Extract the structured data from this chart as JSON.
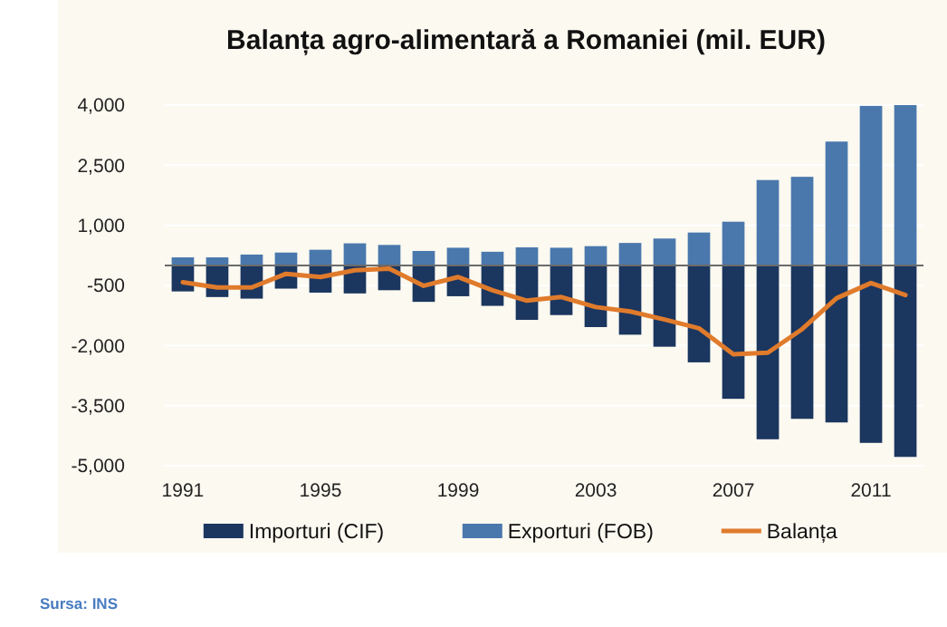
{
  "chart_data": {
    "type": "bar",
    "stacked": true,
    "title": "Balanța agro-alimentară a Romaniei (mil. EUR)",
    "categories": [
      "1991",
      null,
      null,
      null,
      "1995",
      null,
      null,
      null,
      "1999",
      null,
      null,
      null,
      "2003",
      null,
      null,
      null,
      "2007",
      null,
      null,
      null,
      "2011",
      null
    ],
    "series": [
      {
        "name": "Importuri (CIF)",
        "color": "#1b365f",
        "values": [
          -650,
          -790,
          -830,
          -580,
          -680,
          -700,
          -620,
          -910,
          -770,
          -1010,
          -1360,
          -1240,
          -1540,
          -1730,
          -2030,
          -2420,
          -3330,
          -4340,
          -3830,
          -3920,
          -4430,
          -4780
        ]
      },
      {
        "name": "Exporturi (FOB)",
        "color": "#4a78ad",
        "values": [
          200,
          200,
          270,
          320,
          390,
          550,
          510,
          360,
          440,
          340,
          450,
          440,
          480,
          560,
          670,
          820,
          1090,
          2130,
          2210,
          3090,
          3980,
          4000
        ]
      },
      {
        "name": "Balanța",
        "type": "line",
        "color": "#e07b2c",
        "values": [
          -420,
          -550,
          -550,
          -210,
          -290,
          -120,
          -80,
          -510,
          -290,
          -620,
          -880,
          -790,
          -1040,
          -1150,
          -1350,
          -1570,
          -2220,
          -2180,
          -1590,
          -820,
          -440,
          -740
        ]
      }
    ],
    "ylim": [
      -5000,
      4000
    ],
    "yticks": [
      {
        "value": 4000,
        "label": "4,000"
      },
      {
        "value": 2500,
        "label": "2,500"
      },
      {
        "value": 1000,
        "label": "1,000"
      },
      -500,
      {
        "value": -2000,
        "label": "-2,000"
      },
      {
        "value": -3500,
        "label": "-3,500"
      },
      {
        "value": -5000,
        "label": "-5,000"
      }
    ],
    "grid": "y",
    "legend": "bottom",
    "marker": "none",
    "line_style": "solid",
    "annotations": [
      "Sursa: INS"
    ]
  }
}
